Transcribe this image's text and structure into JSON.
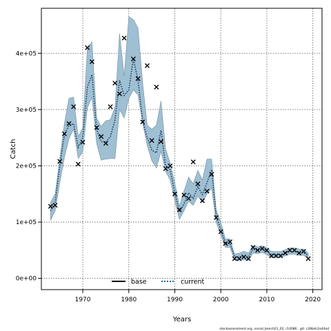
{
  "chart_data": {
    "type": "line",
    "xlabel": "Years",
    "ylabel": "Catch",
    "xlim": [
      1961,
      2022
    ],
    "ylim": [
      -20000,
      480000
    ],
    "x_ticks": [
      1970,
      1980,
      1990,
      2000,
      2010,
      2020
    ],
    "x_tick_labels": [
      "1970",
      "1980",
      "1990",
      "2000",
      "2010",
      "2020"
    ],
    "y_ticks": [
      0,
      100000,
      200000,
      300000,
      400000
    ],
    "y_tick_labels": [
      "0e+00",
      "1e+05",
      "2e+05",
      "3e+05",
      "4e+05"
    ],
    "grid": true,
    "legend": {
      "placement": "bottom-center",
      "entries": [
        {
          "label": "base",
          "style": "solid",
          "color": "#000000"
        },
        {
          "label": "current",
          "style": "dotted",
          "color": "#1f5a94"
        }
      ]
    },
    "band_color": "#9fbfd2",
    "band_edge_color": "#6f8fa3",
    "years": [
      1963,
      1964,
      1965,
      1966,
      1967,
      1968,
      1969,
      1970,
      1971,
      1972,
      1973,
      1974,
      1975,
      1976,
      1977,
      1978,
      1979,
      1980,
      1981,
      1982,
      1983,
      1984,
      1985,
      1986,
      1987,
      1988,
      1989,
      1990,
      1991,
      1992,
      1993,
      1994,
      1995,
      1996,
      1997,
      1998,
      1999,
      2000,
      2001,
      2002,
      2003,
      2004,
      2005,
      2006,
      2007,
      2008,
      2009,
      2010,
      2011,
      2012,
      2013,
      2014,
      2015,
      2016,
      2017,
      2018,
      2019
    ],
    "series": [
      {
        "name": "current",
        "values": [
          120000,
          135000,
          200000,
          255000,
          272000,
          275000,
          233000,
          250000,
          340000,
          362000,
          265000,
          243000,
          242000,
          252000,
          282000,
          352000,
          325000,
          335000,
          390000,
          352000,
          282000,
          250000,
          228000,
          223000,
          263000,
          200000,
          193000,
          152000,
          118000,
          132000,
          152000,
          142000,
          163000,
          149000,
          170000,
          193000,
          110000,
          87000,
          62000,
          62000,
          38000,
          38000,
          40000,
          38000,
          52000,
          50000,
          53000,
          48000,
          42000,
          42000,
          42000,
          45000,
          48000,
          48000,
          46000,
          46000,
          40000
        ]
      }
    ],
    "band_lower": [
      103000,
      120000,
      170000,
      215000,
      248000,
      265000,
      213000,
      225000,
      303000,
      322000,
      240000,
      210000,
      212000,
      213000,
      213000,
      300000,
      285000,
      320000,
      335000,
      326000,
      276000,
      236000,
      209000,
      196000,
      226000,
      190000,
      175000,
      138000,
      105000,
      120000,
      137000,
      130000,
      146000,
      135000,
      150000,
      160000,
      100000,
      77000,
      55000,
      55000,
      33000,
      32000,
      33000,
      32000,
      45000,
      44000,
      46000,
      42000,
      37000,
      37000,
      37000,
      40000,
      43000,
      43000,
      41000,
      41000,
      35000
    ],
    "band_upper": [
      135000,
      150000,
      213000,
      275000,
      320000,
      322000,
      252000,
      268000,
      410000,
      420000,
      285000,
      270000,
      280000,
      282000,
      305000,
      435000,
      360000,
      465000,
      460000,
      445000,
      348000,
      272000,
      265000,
      272000,
      315000,
      230000,
      205000,
      170000,
      128000,
      155000,
      180000,
      168000,
      192000,
      175000,
      212000,
      212000,
      122000,
      100000,
      70000,
      70000,
      43000,
      45000,
      48000,
      45000,
      58000,
      56000,
      58000,
      54000,
      48000,
      48000,
      48000,
      51000,
      54000,
      54000,
      52000,
      52000,
      45000
    ],
    "observed_catch": [
      [
        1963,
        128000
      ],
      [
        1964,
        130000
      ],
      [
        1965,
        208000
      ],
      [
        1966,
        257000
      ],
      [
        1967,
        275000
      ],
      [
        1968,
        305000
      ],
      [
        1969,
        203000
      ],
      [
        1970,
        242000
      ],
      [
        1971,
        410000
      ],
      [
        1972,
        385000
      ],
      [
        1973,
        268000
      ],
      [
        1974,
        252000
      ],
      [
        1975,
        240000
      ],
      [
        1976,
        305000
      ],
      [
        1977,
        347000
      ],
      [
        1978,
        328000
      ],
      [
        1979,
        427000
      ],
      [
        1981,
        390000
      ],
      [
        1982,
        355000
      ],
      [
        1983,
        278000
      ],
      [
        1984,
        378000
      ],
      [
        1985,
        245000
      ],
      [
        1986,
        340000
      ],
      [
        1987,
        243000
      ],
      [
        1988,
        195000
      ],
      [
        1989,
        200000
      ],
      [
        1990,
        150000
      ],
      [
        1991,
        122000
      ],
      [
        1992,
        148000
      ],
      [
        1993,
        142000
      ],
      [
        1994,
        207000
      ],
      [
        1995,
        168000
      ],
      [
        1996,
        138000
      ],
      [
        1997,
        155000
      ],
      [
        1998,
        185000
      ],
      [
        1999,
        108000
      ],
      [
        2000,
        83000
      ],
      [
        2001,
        62000
      ],
      [
        2002,
        65000
      ],
      [
        2003,
        35000
      ],
      [
        2004,
        35000
      ],
      [
        2005,
        38000
      ],
      [
        2006,
        35000
      ],
      [
        2007,
        55000
      ],
      [
        2008,
        50000
      ],
      [
        2009,
        53000
      ],
      [
        2010,
        50000
      ],
      [
        2011,
        40000
      ],
      [
        2012,
        40000
      ],
      [
        2013,
        40000
      ],
      [
        2014,
        45000
      ],
      [
        2015,
        50000
      ],
      [
        2016,
        50000
      ],
      [
        2017,
        45000
      ],
      [
        2018,
        48000
      ],
      [
        2019,
        35000
      ]
    ],
    "footnote": "stockassessment.org, nscod_bench21_02, r14086 , git: c28bdc2a44ad"
  }
}
